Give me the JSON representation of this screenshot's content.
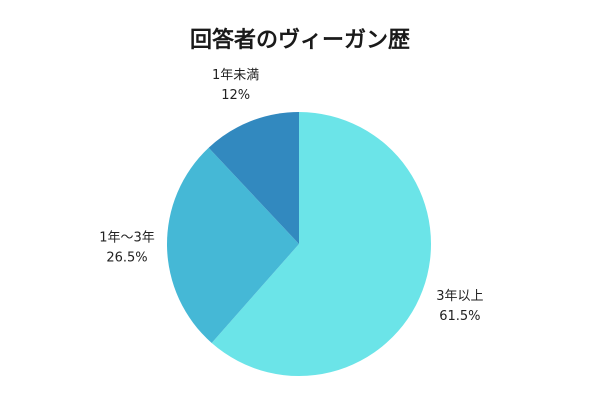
{
  "chart_data": {
    "type": "pie",
    "title": "回答者のヴィーガン歴",
    "slices": [
      {
        "label": "3年以上",
        "value": 61.5,
        "value_label": "61.5%",
        "color": "#6be4e8"
      },
      {
        "label": "1年〜3年",
        "value": 26.5,
        "value_label": "26.5%",
        "color": "#45b8d6"
      },
      {
        "label": "1年未満",
        "value": 12,
        "value_label": "12%",
        "color": "#3289bf"
      }
    ],
    "start": "12 o'clock",
    "direction": "clockwise",
    "legend": "none"
  }
}
